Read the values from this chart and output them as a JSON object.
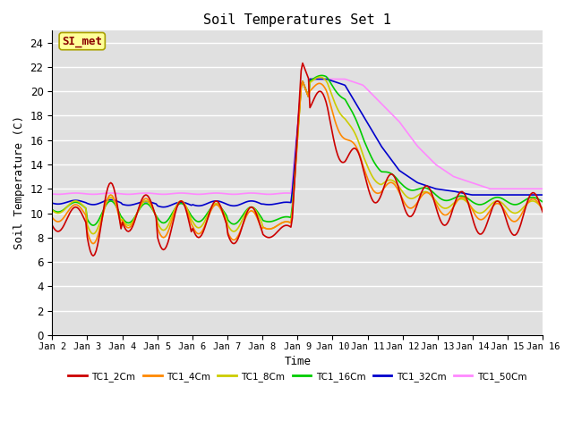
{
  "title": "Soil Temperatures Set 1",
  "xlabel": "Time",
  "ylabel": "Soil Temperature (C)",
  "ylim": [
    0,
    25
  ],
  "yticks": [
    0,
    2,
    4,
    6,
    8,
    10,
    12,
    14,
    16,
    18,
    20,
    22,
    24
  ],
  "bg_color": "#e0e0e0",
  "annotation_text": "SI_met",
  "annotation_color": "#8b0000",
  "annotation_bg": "#ffff99",
  "series": {
    "TC1_2Cm": {
      "color": "#cc0000",
      "lw": 1.2
    },
    "TC1_4Cm": {
      "color": "#ff8800",
      "lw": 1.2
    },
    "TC1_8Cm": {
      "color": "#cccc00",
      "lw": 1.2
    },
    "TC1_16Cm": {
      "color": "#00cc00",
      "lw": 1.2
    },
    "TC1_32Cm": {
      "color": "#0000cc",
      "lw": 1.2
    },
    "TC1_50Cm": {
      "color": "#ff88ff",
      "lw": 1.2
    }
  },
  "x_labels": [
    "Jan 2",
    "Jan 3",
    "Jan 4",
    "Jan 5",
    "Jan 6",
    "Jan 7",
    "Jan 8",
    "Jan 9",
    "Jan 10",
    "Jan 11",
    "Jan 12",
    "Jan 13",
    "Jan 14",
    "Jan 15",
    "Jan 16"
  ],
  "num_days": 14,
  "pts_per_day": 24
}
